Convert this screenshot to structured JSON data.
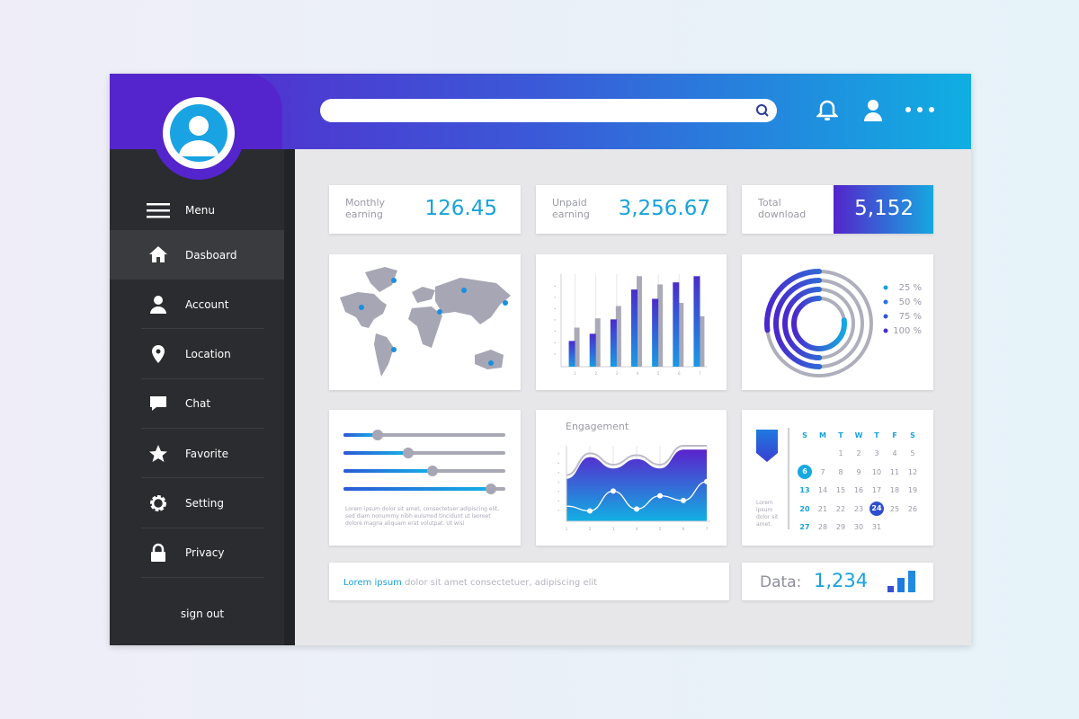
{
  "header": {
    "search_placeholder": "",
    "icons": [
      "search-icon",
      "bell-icon",
      "user-icon",
      "more-icon"
    ]
  },
  "colors": {
    "accent_blue": "#18a2dc",
    "purple": "#5425cc",
    "sidebar": "#2b2c30"
  },
  "sidebar": {
    "menu_label": "Menu",
    "items": [
      {
        "label": "Dasboard",
        "icon": "home-icon",
        "active": true
      },
      {
        "label": "Account",
        "icon": "user-icon"
      },
      {
        "label": "Location",
        "icon": "location-pin-icon"
      },
      {
        "label": "Chat",
        "icon": "chat-icon"
      },
      {
        "label": "Favorite",
        "icon": "star-icon"
      },
      {
        "label": "Setting",
        "icon": "gear-icon"
      },
      {
        "label": "Privacy",
        "icon": "lock-icon"
      }
    ],
    "signout": "sign out"
  },
  "stats": [
    {
      "label": "Monthly earning",
      "value": "126.45"
    },
    {
      "label": "Unpaid earning",
      "value": "3,256.67"
    },
    {
      "label": "Total download",
      "value": "5,152"
    }
  ],
  "chart_data": [
    {
      "type": "bar",
      "x": [
        "1",
        "2",
        "3",
        "4",
        "5",
        "6",
        "7"
      ],
      "series": [
        {
          "values": [
            2.5,
            3.2,
            4.6,
            7.5,
            6.6,
            8.2,
            8.8
          ]
        },
        {
          "values": [
            3.8,
            4.7,
            5.9,
            8.8,
            8.0,
            6.2,
            4.9
          ]
        }
      ],
      "ylim": [
        0,
        9
      ],
      "grid": true
    },
    {
      "type": "pie",
      "legend": [
        "25 %",
        "50 %",
        "75 %",
        "100 %"
      ],
      "values": [
        25,
        50,
        75,
        100
      ],
      "legend_position": "right"
    },
    {
      "type": "area",
      "title": "Engagement",
      "x": [
        "1",
        "2",
        "3",
        "4",
        "5",
        "6",
        "7"
      ],
      "area": [
        4.5,
        6.8,
        5.6,
        6.6,
        5.6,
        7.6,
        7.6
      ],
      "line": [
        1.6,
        1.1,
        3.2,
        1.3,
        2.7,
        2.2,
        4.2
      ],
      "ylim": [
        0,
        8
      ]
    }
  ],
  "sliders": [
    {
      "value": 0.21
    },
    {
      "value": 0.4
    },
    {
      "value": 0.55
    },
    {
      "value": 0.91
    }
  ],
  "slider_text": "Lorem ipsum dolor sit amet, consectetuer adipiscing elit, sed diam nonummy nibh euismod tincidunt ut laoreet dolore magna aliquam erat volutpat. Ut wisi",
  "calendar": {
    "days": [
      "S",
      "M",
      "T",
      "W",
      "T",
      "F",
      "S"
    ],
    "weeks": [
      [
        "",
        "",
        "1",
        "2",
        "3",
        "4",
        "5"
      ],
      [
        "6",
        "7",
        "8",
        "9",
        "10",
        "11",
        "12"
      ],
      [
        "13",
        "14",
        "15",
        "16",
        "17",
        "18",
        "19"
      ],
      [
        "20",
        "21",
        "22",
        "23",
        "24",
        "25",
        "26"
      ],
      [
        "27",
        "28",
        "29",
        "30",
        "31",
        "",
        ""
      ]
    ],
    "today": "6",
    "selected": "24",
    "note": "Lorem ipsum dolor sit amet."
  },
  "footer": {
    "highlight": "Lorem ipsum",
    "text": " dolor sit amet consectetuer, adipiscing elit",
    "data_label": "Data:",
    "data_value": "1,234"
  }
}
